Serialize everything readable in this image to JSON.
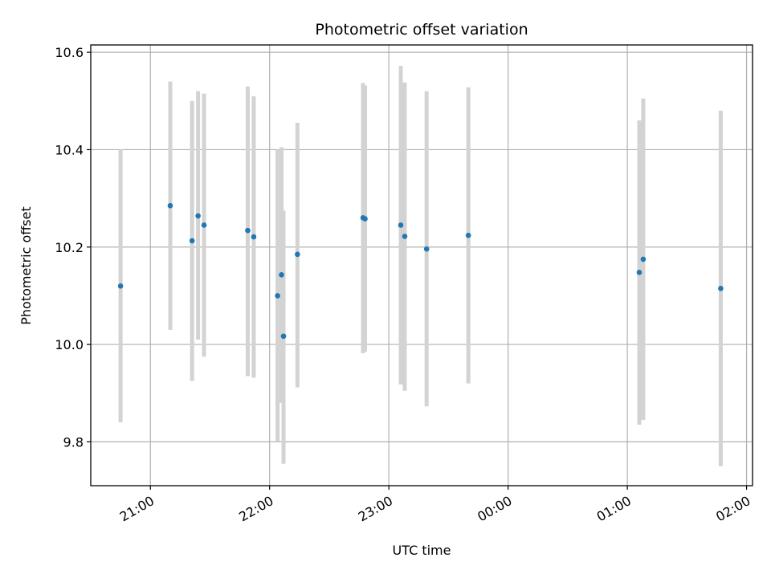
{
  "chart_data": {
    "type": "scatter",
    "title": "Photometric offset variation",
    "xlabel": "UTC time",
    "ylabel": "Photometric offset",
    "x_is_time": true,
    "xlim": [
      "20:30",
      "02:03"
    ],
    "ylim": [
      9.71,
      10.615
    ],
    "x_ticks": [
      "21:00",
      "22:00",
      "23:00",
      "00:00",
      "01:00",
      "02:00"
    ],
    "y_ticks": [
      9.8,
      10.0,
      10.2,
      10.4,
      10.6
    ],
    "y_tick_labels": [
      "9.8",
      "10.0",
      "10.2",
      "10.4",
      "10.6"
    ],
    "grid": true,
    "colors": {
      "marker": "#1f77b4",
      "errorbar": "#d3d3d3",
      "grid": "#b0b0b0"
    },
    "series": [
      {
        "points": [
          {
            "x": "20:45",
            "y": 10.12,
            "ylow": 9.84,
            "yhigh": 10.4
          },
          {
            "x": "21:10",
            "y": 10.285,
            "ylow": 10.03,
            "yhigh": 10.54
          },
          {
            "x": "21:21",
            "y": 10.213,
            "ylow": 9.925,
            "yhigh": 10.5
          },
          {
            "x": "21:24",
            "y": 10.264,
            "ylow": 10.01,
            "yhigh": 10.52
          },
          {
            "x": "21:27",
            "y": 10.245,
            "ylow": 9.975,
            "yhigh": 10.515
          },
          {
            "x": "21:49",
            "y": 10.234,
            "ylow": 9.935,
            "yhigh": 10.53
          },
          {
            "x": "21:52",
            "y": 10.221,
            "ylow": 9.932,
            "yhigh": 10.51
          },
          {
            "x": "22:04",
            "y": 10.1,
            "ylow": 9.8,
            "yhigh": 10.4
          },
          {
            "x": "22:06",
            "y": 10.143,
            "ylow": 9.88,
            "yhigh": 10.405
          },
          {
            "x": "22:07",
            "y": 10.017,
            "ylow": 9.755,
            "yhigh": 10.275
          },
          {
            "x": "22:14",
            "y": 10.185,
            "ylow": 9.912,
            "yhigh": 10.455
          },
          {
            "x": "22:47",
            "y": 10.26,
            "ylow": 9.982,
            "yhigh": 10.537
          },
          {
            "x": "22:48",
            "y": 10.258,
            "ylow": 9.985,
            "yhigh": 10.532
          },
          {
            "x": "23:06",
            "y": 10.245,
            "ylow": 9.918,
            "yhigh": 10.572
          },
          {
            "x": "23:08",
            "y": 10.222,
            "ylow": 9.905,
            "yhigh": 10.538
          },
          {
            "x": "23:19",
            "y": 10.196,
            "ylow": 9.873,
            "yhigh": 10.52
          },
          {
            "x": "23:40",
            "y": 10.224,
            "ylow": 9.92,
            "yhigh": 10.528
          },
          {
            "x": "01:06",
            "y": 10.148,
            "ylow": 9.835,
            "yhigh": 10.46
          },
          {
            "x": "01:08",
            "y": 10.175,
            "ylow": 9.845,
            "yhigh": 10.505
          },
          {
            "x": "01:47",
            "y": 10.115,
            "ylow": 9.75,
            "yhigh": 10.48
          }
        ]
      }
    ]
  }
}
